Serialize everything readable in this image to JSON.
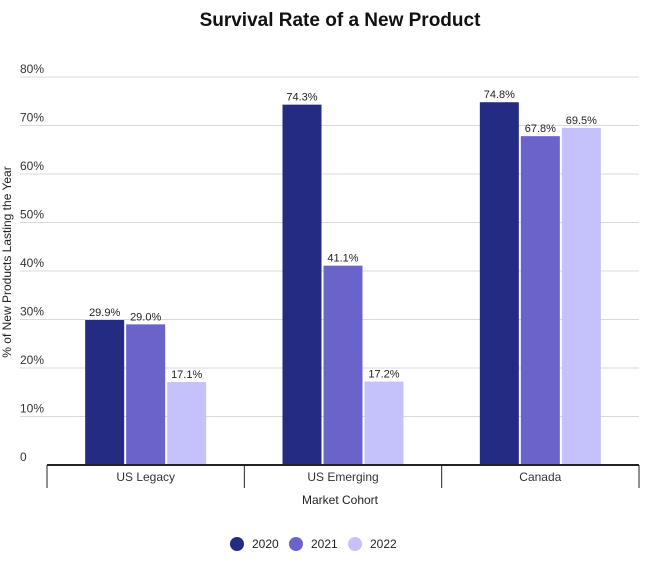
{
  "chart_data": {
    "type": "bar",
    "title": "Survival Rate of a New Product",
    "xlabel": "Market Cohort",
    "ylabel": "% of New Products Lasting the Year",
    "categories": [
      "US Legacy",
      "US Emerging",
      "Canada"
    ],
    "series": [
      {
        "name": "2020",
        "color": "#232c82",
        "values": [
          29.9,
          74.3,
          74.8
        ],
        "labels": [
          "29.9%",
          "74.3%",
          "74.8%"
        ]
      },
      {
        "name": "2021",
        "color": "#6a63c9",
        "values": [
          29.0,
          41.1,
          67.8
        ],
        "labels": [
          "29.0%",
          "41.1%",
          "67.8%"
        ]
      },
      {
        "name": "2022",
        "color": "#c4c1fb",
        "values": [
          17.1,
          17.2,
          69.5
        ],
        "labels": [
          "17.1%",
          "17.2%",
          "69.5%"
        ]
      }
    ],
    "ylim": [
      0,
      80
    ],
    "yticks": [
      0,
      10,
      20,
      30,
      40,
      50,
      60,
      70,
      80
    ],
    "ytick_labels": [
      "0",
      "10%",
      "20%",
      "30%",
      "40%",
      "50%",
      "60%",
      "70%",
      "80%"
    ],
    "grid": true,
    "legend_position": "bottom"
  }
}
